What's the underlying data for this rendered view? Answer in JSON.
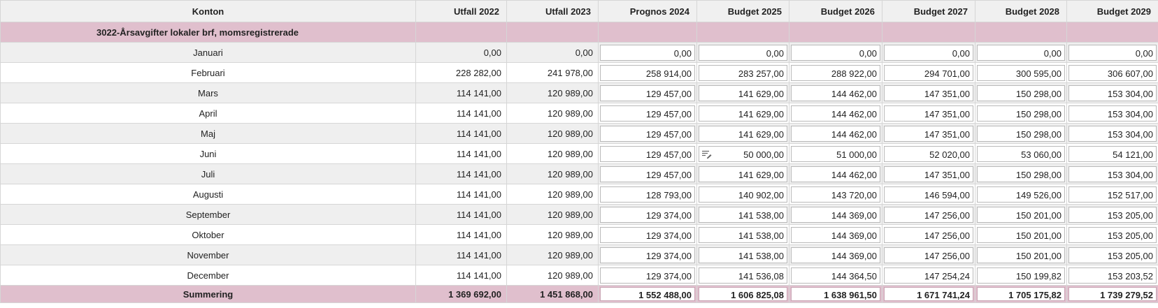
{
  "table": {
    "headers": [
      "Konton",
      "Utfall 2022",
      "Utfall 2023",
      "Prognos 2024",
      "Budget 2025",
      "Budget 2026",
      "Budget 2027",
      "Budget 2028",
      "Budget 2029"
    ],
    "group_label": "3022-Årsavgifter lokaler brf, momsregistrerade",
    "rows": [
      {
        "month": "Januari",
        "values": [
          "0,00",
          "0,00",
          "0,00",
          "0,00",
          "0,00",
          "0,00",
          "0,00",
          "0,00"
        ]
      },
      {
        "month": "Februari",
        "values": [
          "228 282,00",
          "241 978,00",
          "258 914,00",
          "283 257,00",
          "288 922,00",
          "294 701,00",
          "300 595,00",
          "306 607,00"
        ]
      },
      {
        "month": "Mars",
        "values": [
          "114 141,00",
          "120 989,00",
          "129 457,00",
          "141 629,00",
          "144 462,00",
          "147 351,00",
          "150 298,00",
          "153 304,00"
        ]
      },
      {
        "month": "April",
        "values": [
          "114 141,00",
          "120 989,00",
          "129 457,00",
          "141 629,00",
          "144 462,00",
          "147 351,00",
          "150 298,00",
          "153 304,00"
        ]
      },
      {
        "month": "Maj",
        "values": [
          "114 141,00",
          "120 989,00",
          "129 457,00",
          "141 629,00",
          "144 462,00",
          "147 351,00",
          "150 298,00",
          "153 304,00"
        ]
      },
      {
        "month": "Juni",
        "values": [
          "114 141,00",
          "120 989,00",
          "129 457,00",
          "50 000,00",
          "51 000,00",
          "52 020,00",
          "53 060,00",
          "54 121,00"
        ]
      },
      {
        "month": "Juli",
        "values": [
          "114 141,00",
          "120 989,00",
          "129 457,00",
          "141 629,00",
          "144 462,00",
          "147 351,00",
          "150 298,00",
          "153 304,00"
        ]
      },
      {
        "month": "Augusti",
        "values": [
          "114 141,00",
          "120 989,00",
          "128 793,00",
          "140 902,00",
          "143 720,00",
          "146 594,00",
          "149 526,00",
          "152 517,00"
        ]
      },
      {
        "month": "September",
        "values": [
          "114 141,00",
          "120 989,00",
          "129 374,00",
          "141 538,00",
          "144 369,00",
          "147 256,00",
          "150 201,00",
          "153 205,00"
        ]
      },
      {
        "month": "Oktober",
        "values": [
          "114 141,00",
          "120 989,00",
          "129 374,00",
          "141 538,00",
          "144 369,00",
          "147 256,00",
          "150 201,00",
          "153 205,00"
        ]
      },
      {
        "month": "November",
        "values": [
          "114 141,00",
          "120 989,00",
          "129 374,00",
          "141 538,00",
          "144 369,00",
          "147 256,00",
          "150 201,00",
          "153 205,00"
        ]
      },
      {
        "month": "December",
        "values": [
          "114 141,00",
          "120 989,00",
          "129 374,00",
          "141 536,08",
          "144 364,50",
          "147 254,24",
          "150 199,82",
          "153 203,52"
        ]
      }
    ],
    "summary": {
      "label": "Summering",
      "values": [
        "1 369 692,00",
        "1 451 868,00",
        "1 552 488,00",
        "1 606 825,08",
        "1 638 961,50",
        "1 671 741,24",
        "1 705 175,82",
        "1 739 279,52"
      ]
    },
    "note_icon": {
      "name": "comment-edit-icon",
      "row": "Juni",
      "column": "Budget 2025"
    }
  },
  "colors": {
    "group_bg": "#e0bfcd",
    "header_bg": "#f0f0f0",
    "stripe_bg": "#efefef"
  }
}
